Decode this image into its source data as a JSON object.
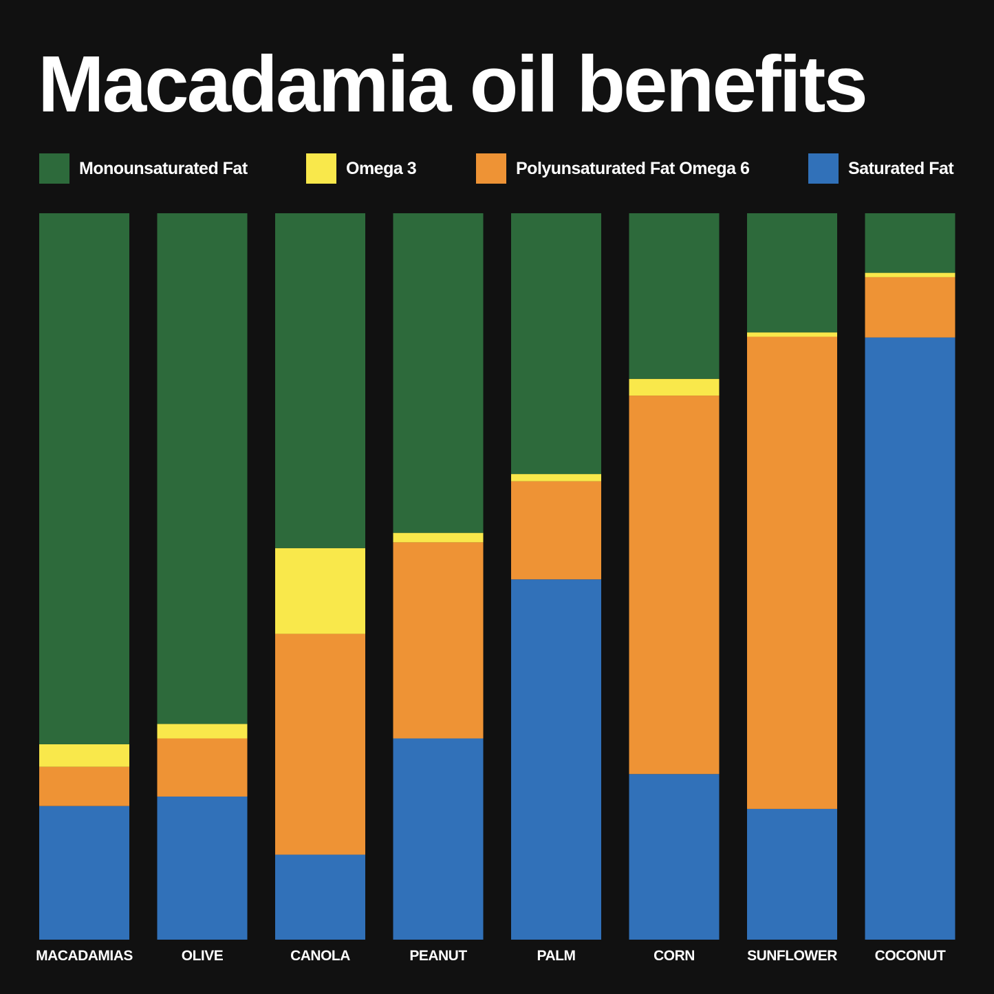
{
  "chart_data": {
    "type": "bar",
    "stacked": true,
    "title": "Macadamia oil benefits",
    "xlabel": "",
    "ylabel": "",
    "ylim": [
      0,
      100
    ],
    "grid": false,
    "legend_position": "top",
    "categories": [
      "MACADAMIAS",
      "OLIVE",
      "CANOLA",
      "PEANUT",
      "PALM",
      "CORN",
      "SUNFLOWER",
      "COCONUT"
    ],
    "series": [
      {
        "name": "Saturated Fat",
        "color": "#3171b9",
        "values": [
          18.4,
          19.7,
          11.7,
          27.7,
          49.6,
          22.8,
          18.0,
          82.9
        ]
      },
      {
        "name": "Polyunsaturated Fat Omega 6",
        "color": "#ee9335",
        "values": [
          5.4,
          8.0,
          30.4,
          27.0,
          13.5,
          52.1,
          65.0,
          8.3
        ]
      },
      {
        "name": "Omega 3",
        "color": "#f9e84b",
        "values": [
          3.1,
          2.0,
          11.8,
          1.3,
          1.0,
          2.3,
          0.6,
          0.6
        ]
      },
      {
        "name": "Monounsaturated Fat",
        "color": "#2d6a3b",
        "values": [
          73.1,
          70.3,
          46.1,
          44.0,
          35.9,
          22.8,
          16.4,
          8.2
        ]
      }
    ],
    "legend": [
      "Monounsaturated Fat",
      "Omega 3",
      "Polyunsaturated Fat Omega 6",
      "Saturated Fat"
    ]
  }
}
